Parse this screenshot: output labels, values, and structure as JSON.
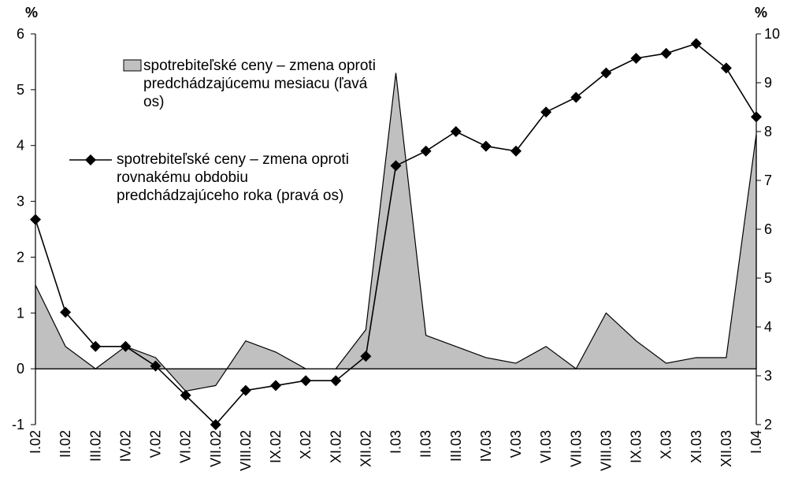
{
  "chart_data": {
    "type": "area-line",
    "categories": [
      "I.02",
      "II.02",
      "III.02",
      "IV.02",
      "V.02",
      "VI.02",
      "VII.02",
      "VIII.02",
      "IX.02",
      "X.02",
      "XI.02",
      "XII.02",
      "I.03",
      "II.03",
      "III.03",
      "IV.03",
      "V.03",
      "VI.03",
      "VII.03",
      "VIII.03",
      "IX.03",
      "X.03",
      "XI.03",
      "XII.03",
      "I.04"
    ],
    "series": [
      {
        "name": "spotrebiteľské ceny – zmena oproti predchádzajúcemu mesiacu (ľavá os)",
        "color": "#c0c0c0",
        "axis": "y",
        "values": [
          1.5,
          0.4,
          0.0,
          0.4,
          0.2,
          -0.4,
          -0.3,
          0.5,
          0.3,
          0.0,
          0.0,
          0.7,
          5.3,
          0.6,
          0.4,
          0.2,
          0.1,
          0.4,
          0.0,
          1.0,
          0.5,
          0.1,
          0.2,
          0.2,
          4.2
        ]
      },
      {
        "name": "spotrebiteľské ceny – zmena oproti rovnakému obdobiu predchádzajúceho roka (pravá os)",
        "color": "#000000",
        "axis": "y2",
        "values": [
          6.2,
          4.3,
          3.6,
          3.6,
          3.2,
          2.6,
          2.0,
          2.7,
          2.8,
          2.9,
          2.9,
          3.4,
          7.3,
          7.6,
          8.0,
          7.7,
          7.6,
          8.4,
          8.7,
          9.2,
          9.5,
          9.6,
          9.8,
          9.3,
          8.3
        ]
      }
    ],
    "ylabel": "%",
    "y2label": "%",
    "ylim": [
      -1,
      6
    ],
    "yticks": [
      -1,
      0,
      1,
      2,
      3,
      4,
      5,
      6
    ],
    "y2lim": [
      2,
      10
    ],
    "y2ticks": [
      2,
      3,
      4,
      5,
      6,
      7,
      8,
      9,
      10
    ]
  }
}
